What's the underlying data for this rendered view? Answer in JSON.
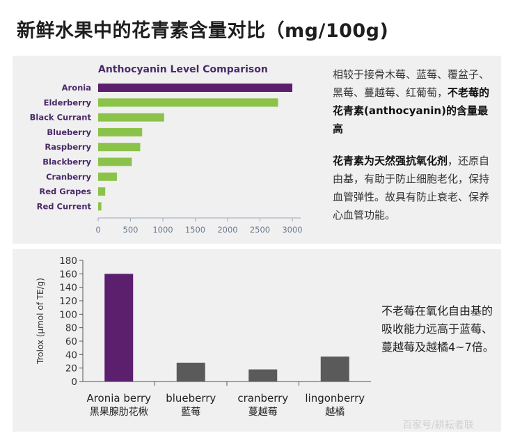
{
  "page": {
    "title": "新鲜水果中的花青素含量对比（mg/100g)"
  },
  "notes": {
    "note1_text": "相较于接骨木莓、蓝莓、覆盆子、黑莓、蔓越莓、红葡萄，",
    "note1_bold": "不老莓的花青素(anthocyanin)的含量最高",
    "note2_bold": "花青素为天然强抗氧化剂",
    "note2_text": "，还原自由基，有助于防止细胞老化，保持血管弹性。故具有防止衰老、保养心血管功能。",
    "note3_text": "不老莓在氧化自由基的吸收能力远高于蓝莓、蔓越莓及越橘4~7倍。"
  },
  "watermark": "百家号/耕耘者联",
  "colors": {
    "purple": "#5b1f6e",
    "green": "#8bc34a",
    "gray": "#5a5a5a",
    "title_purple": "#4a2a6a",
    "panel_bg": "#f0f0f0"
  },
  "chart_data": [
    {
      "type": "bar",
      "orientation": "horizontal",
      "title": "Anthocyanin Level Comparison",
      "categories": [
        "Aronia",
        "Elderberry",
        "Black Currant",
        "Blueberry",
        "Raspberry",
        "Blackberry",
        "Cranberry",
        "Red Grapes",
        "Red Current"
      ],
      "values": [
        3000,
        2780,
        1020,
        680,
        650,
        520,
        290,
        110,
        50
      ],
      "xlim": [
        0,
        3200
      ],
      "xticks": [
        0,
        500,
        1000,
        1500,
        2000,
        2500,
        3000
      ],
      "xlabel": "",
      "ylabel": "",
      "grid": false
    },
    {
      "type": "bar",
      "orientation": "vertical",
      "title": "",
      "categories": [
        "Aronia berry",
        "blueberry",
        "cranberry",
        "lingonberry"
      ],
      "categories_cn": [
        "黑果腺肋花楸",
        "藍莓",
        "蔓越莓",
        "越橘"
      ],
      "values": [
        160,
        28,
        18,
        37
      ],
      "ylim": [
        0,
        180
      ],
      "yticks": [
        0,
        20,
        40,
        60,
        80,
        100,
        120,
        140,
        160,
        180
      ],
      "xlabel": "",
      "ylabel": "Trolox (μmol of TE/g)",
      "grid": false
    }
  ]
}
